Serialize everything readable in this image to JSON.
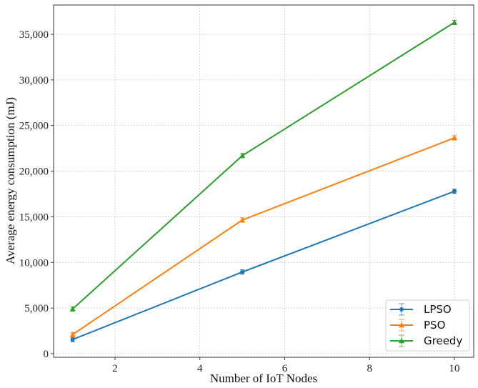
{
  "chart_data": {
    "type": "line",
    "title": "",
    "xlabel": "Number of IoT Nodes",
    "ylabel": "Average energy consumption (mJ)",
    "x": [
      1,
      5,
      10
    ],
    "xlim": [
      0.05,
      10.45
    ],
    "ylim": [
      -400,
      38000
    ],
    "xticks": [
      2,
      4,
      6,
      8,
      10
    ],
    "xtick_labels": [
      "2",
      "4",
      "6",
      "8",
      "10"
    ],
    "yticks": [
      0,
      5000,
      10000,
      15000,
      20000,
      25000,
      30000,
      35000
    ],
    "ytick_labels": [
      "0",
      "5,000",
      "10,000",
      "15,000",
      "20,000",
      "25,000",
      "30,000",
      "35,000"
    ],
    "grid": true,
    "legend_position": "lower right",
    "series": [
      {
        "name": "LPSO",
        "values": [
          1550,
          8950,
          17800
        ],
        "color": "#1f77b4",
        "marker": "circle"
      },
      {
        "name": "PSO",
        "values": [
          2100,
          14650,
          23650
        ],
        "color": "#ff7f0e",
        "marker": "triangle"
      },
      {
        "name": "Greedy",
        "values": [
          4900,
          21700,
          36300
        ],
        "color": "#2ca02c",
        "marker": "triangle"
      }
    ]
  },
  "legend": {
    "items": [
      {
        "label": "LPSO"
      },
      {
        "label": "PSO"
      },
      {
        "label": "Greedy"
      }
    ]
  },
  "axes": {
    "xlabel": "Number of IoT Nodes",
    "ylabel": "Average energy consumption (mJ)"
  }
}
